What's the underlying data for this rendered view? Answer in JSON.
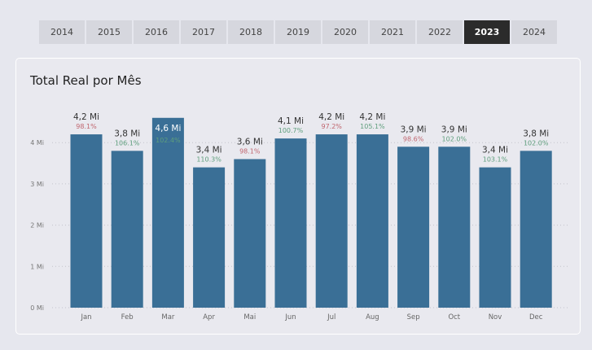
{
  "year_tabs": {
    "years": [
      "2014",
      "2015",
      "2016",
      "2017",
      "2018",
      "2019",
      "2020",
      "2021",
      "2022",
      "2023",
      "2024"
    ],
    "selected": "2023"
  },
  "chart_data": {
    "type": "bar",
    "title": "Total Real por Mês",
    "categories": [
      "Jan",
      "Feb",
      "Mar",
      "Apr",
      "Mai",
      "Jun",
      "Jul",
      "Aug",
      "Sep",
      "Oct",
      "Nov",
      "Dec"
    ],
    "values": [
      4.2,
      3.8,
      4.6,
      3.4,
      3.6,
      4.1,
      4.2,
      4.2,
      3.9,
      3.9,
      3.4,
      3.8
    ],
    "value_labels": [
      "4,2 Mi",
      "3,8 Mi",
      "4,6 Mi",
      "3,4 Mi",
      "3,6 Mi",
      "4,1 Mi",
      "4,2 Mi",
      "4,2 Mi",
      "3,9 Mi",
      "3,9 Mi",
      "3,4 Mi",
      "3,8 Mi"
    ],
    "percent_labels": [
      "98.1%",
      "106.1%",
      "102.4%",
      "110.3%",
      "98.1%",
      "100.7%",
      "97.2%",
      "105.1%",
      "98.6%",
      "102.0%",
      "103.1%",
      "102.0%"
    ],
    "percent_values": [
      98.1,
      106.1,
      102.4,
      110.3,
      98.1,
      100.7,
      97.2,
      105.1,
      98.6,
      102.0,
      103.1,
      102.0
    ],
    "yticks": [
      0,
      1,
      2,
      3,
      4
    ],
    "ytick_labels": [
      "0 Mi",
      "1 Mi",
      "2 Mi",
      "3 Mi",
      "4 Mi"
    ],
    "ylim": [
      0,
      4.6
    ],
    "xlabel": "",
    "ylabel": "",
    "grid": true,
    "colors": {
      "bar": "#3a6f96",
      "positive": "#5e9e7c",
      "negative": "#c0666f",
      "grid": "#c3c4cc"
    }
  }
}
